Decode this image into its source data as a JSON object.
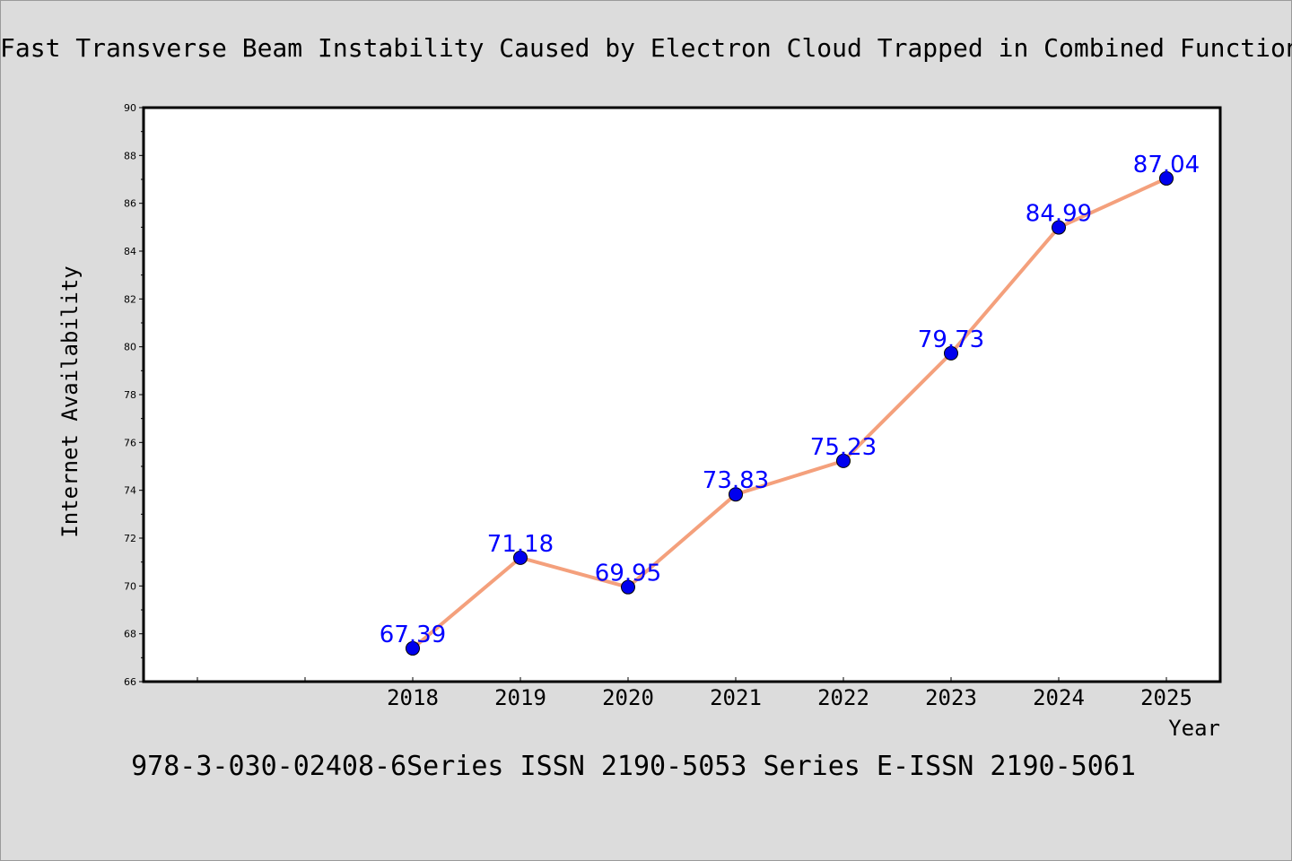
{
  "chart_data": {
    "type": "line",
    "title": "Fast Transverse Beam Instability Caused by Electron Cloud Trapped in Combined Function Magnets",
    "xlabel": "Year",
    "ylabel": "Internet Availability",
    "caption": "978-3-030-02408-6Series ISSN 2190-5053 Series E-ISSN 2190-5061",
    "x": [
      "2018",
      "2019",
      "2020",
      "2021",
      "2022",
      "2023",
      "2024",
      "2025"
    ],
    "x_tick_labels": [
      "",
      "",
      "2018",
      "2019",
      "2020",
      "2021",
      "2022",
      "2023",
      "2024",
      "2025"
    ],
    "series": [
      {
        "values": [
          67.39,
          71.18,
          69.95,
          73.83,
          75.23,
          79.73,
          84.99,
          87.04
        ],
        "labels": [
          "67.39",
          "71.18",
          "69.95",
          "73.83",
          "75.23",
          "79.73",
          "84.99",
          "87.04"
        ],
        "line_color": "#f4a07c",
        "marker_color": "#0000ee",
        "label_color": "#0000ff"
      }
    ],
    "ylim": [
      66,
      90
    ],
    "y_ticks": [
      "66",
      "68",
      "70",
      "72",
      "74",
      "76",
      "78",
      "80",
      "82",
      "84",
      "86",
      "88",
      "90"
    ],
    "grid": false,
    "legend": "none"
  }
}
